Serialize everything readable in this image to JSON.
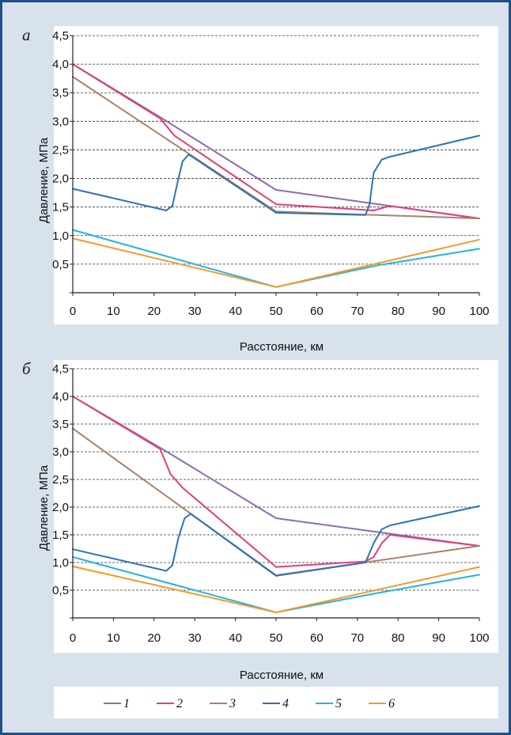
{
  "colors": {
    "frame_border": "#1f4e8c",
    "frame_bg": "#d7e2ec",
    "plot_bg": "#ffffff",
    "grid": "#333333"
  },
  "legend": {
    "items": [
      {
        "label": "1",
        "color": "#8b6cab"
      },
      {
        "label": "2",
        "color": "#e0407a"
      },
      {
        "label": "3",
        "color": "#a8836a"
      },
      {
        "label": "4",
        "color": "#2f72b5"
      },
      {
        "label": "5",
        "color": "#1eb4e6"
      },
      {
        "label": "6",
        "color": "#f59a27"
      }
    ]
  },
  "chart_data": [
    {
      "type": "line",
      "panel_label": "а",
      "xlabel": "Расстояние, км",
      "ylabel": "Давление, МПа",
      "xlim": [
        0,
        100
      ],
      "ylim": [
        0,
        4.5
      ],
      "x_ticks": [
        "0",
        "10",
        "20",
        "30",
        "40",
        "50",
        "60",
        "70",
        "80",
        "90",
        "100"
      ],
      "y_ticks": [
        "",
        "0,5",
        "1,0",
        "1,5",
        "2,0",
        "2,5",
        "3,0",
        "3,5",
        "4,0",
        "4,5"
      ],
      "grid": "horizontal dashed",
      "series": [
        {
          "name": "1",
          "color": "#8b6cab",
          "points": [
            [
              0,
              4.0
            ],
            [
              22,
              3.05
            ],
            [
              50,
              1.8
            ],
            [
              100,
              1.3
            ]
          ]
        },
        {
          "name": "2",
          "color": "#e0407a",
          "points": [
            [
              0,
              4.0
            ],
            [
              21.5,
              3.05
            ],
            [
              25,
              2.75
            ],
            [
              50,
              1.55
            ],
            [
              74,
              1.44
            ],
            [
              77,
              1.5
            ],
            [
              78,
              1.52
            ],
            [
              100,
              1.3
            ]
          ]
        },
        {
          "name": "3",
          "color": "#a8836a",
          "points": [
            [
              0,
              3.78
            ],
            [
              50,
              1.42
            ],
            [
              100,
              1.3
            ]
          ]
        },
        {
          "name": "4",
          "color": "#2f72b5",
          "points": [
            [
              0,
              1.82
            ],
            [
              23,
              1.44
            ],
            [
              24.5,
              1.52
            ],
            [
              26,
              2.0
            ],
            [
              27,
              2.3
            ],
            [
              28.5,
              2.42
            ],
            [
              50,
              1.4
            ],
            [
              72,
              1.36
            ],
            [
              73,
              1.55
            ],
            [
              74,
              2.1
            ],
            [
              76,
              2.33
            ],
            [
              78,
              2.38
            ],
            [
              100,
              2.75
            ]
          ]
        },
        {
          "name": "5",
          "color": "#1eb4e6",
          "points": [
            [
              0,
              1.1
            ],
            [
              25,
              0.6
            ],
            [
              50,
              0.1
            ],
            [
              75,
              0.48
            ],
            [
              100,
              0.77
            ]
          ]
        },
        {
          "name": "6",
          "color": "#f59a27",
          "points": [
            [
              0,
              0.95
            ],
            [
              50,
              0.1
            ],
            [
              100,
              0.93
            ]
          ]
        }
      ]
    },
    {
      "type": "line",
      "panel_label": "б",
      "xlabel": "Расстояние, км",
      "ylabel": "Давление, МПа",
      "xlim": [
        0,
        100
      ],
      "ylim": [
        0,
        4.5
      ],
      "x_ticks": [
        "0",
        "10",
        "20",
        "30",
        "40",
        "50",
        "60",
        "70",
        "80",
        "90",
        "100"
      ],
      "y_ticks": [
        "",
        "0,5",
        "1,0",
        "1,5",
        "2,0",
        "2,5",
        "3,0",
        "3,5",
        "4,0",
        "4,5"
      ],
      "grid": "horizontal dashed",
      "series": [
        {
          "name": "1",
          "color": "#8b6cab",
          "points": [
            [
              0,
              4.0
            ],
            [
              22,
              3.05
            ],
            [
              50,
              1.8
            ],
            [
              100,
              1.3
            ]
          ]
        },
        {
          "name": "2",
          "color": "#e0407a",
          "points": [
            [
              0,
              4.0
            ],
            [
              21.5,
              3.05
            ],
            [
              24,
              2.6
            ],
            [
              27,
              2.35
            ],
            [
              50,
              0.92
            ],
            [
              72,
              1.02
            ],
            [
              74,
              1.1
            ],
            [
              76,
              1.35
            ],
            [
              78,
              1.5
            ],
            [
              100,
              1.3
            ]
          ]
        },
        {
          "name": "3",
          "color": "#a8836a",
          "points": [
            [
              0,
              3.42
            ],
            [
              50,
              0.77
            ],
            [
              100,
              1.3
            ]
          ]
        },
        {
          "name": "4",
          "color": "#2f72b5",
          "points": [
            [
              0,
              1.24
            ],
            [
              23,
              0.85
            ],
            [
              24.5,
              0.95
            ],
            [
              26,
              1.45
            ],
            [
              27.5,
              1.8
            ],
            [
              29,
              1.88
            ],
            [
              50,
              0.76
            ],
            [
              72,
              1.0
            ],
            [
              74,
              1.35
            ],
            [
              76,
              1.6
            ],
            [
              78,
              1.67
            ],
            [
              100,
              2.02
            ]
          ]
        },
        {
          "name": "5",
          "color": "#1eb4e6",
          "points": [
            [
              0,
              1.1
            ],
            [
              25,
              0.6
            ],
            [
              50,
              0.1
            ],
            [
              75,
              0.45
            ],
            [
              100,
              0.78
            ]
          ]
        },
        {
          "name": "6",
          "color": "#f59a27",
          "points": [
            [
              0,
              0.93
            ],
            [
              50,
              0.1
            ],
            [
              100,
              0.92
            ]
          ]
        }
      ]
    }
  ]
}
